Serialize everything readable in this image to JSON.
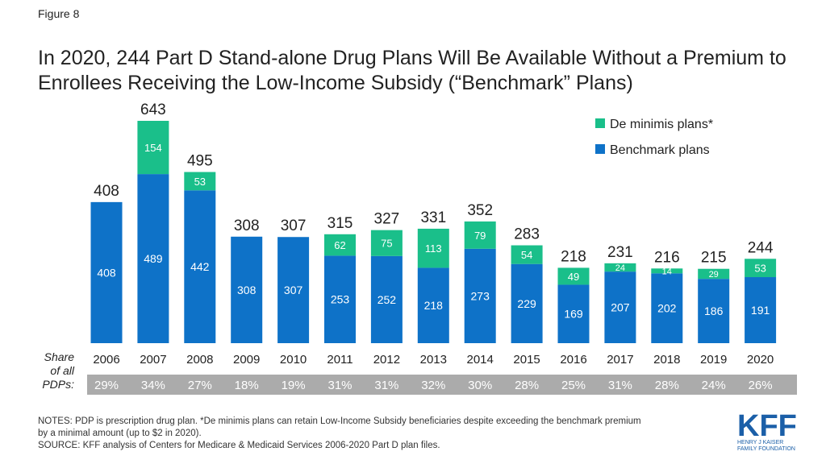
{
  "figure_label": "Figure 8",
  "title": "In 2020, 244 Part D Stand-alone Drug Plans Will Be Available Without a Premium to Enrollees Receiving the Low-Income Subsidy (“Benchmark” Plans)",
  "notes_line1": "NOTES: PDP is prescription drug plan. *De minimis plans can retain Low-Income Subsidy beneficiaries despite exceeding the benchmark premium",
  "notes_line2": "by a minimal amount (up to $2 in 2020).",
  "source": "SOURCE: KFF analysis of Centers for Medicare & Medicaid Services 2006-2020 Part D plan files.",
  "logo": {
    "big": "KFF",
    "line1": "HENRY J KAISER",
    "line2": "FAMILY FOUNDATION"
  },
  "colors": {
    "benchmark": "#0E72C8",
    "deminimis": "#1ABF8A",
    "share_bar": "#ABABAB",
    "text": "#222222"
  },
  "chart_data": {
    "type": "bar",
    "stacked": true,
    "categories": [
      "2006",
      "2007",
      "2008",
      "2009",
      "2010",
      "2011",
      "2012",
      "2013",
      "2014",
      "2015",
      "2016",
      "2017",
      "2018",
      "2019",
      "2020"
    ],
    "series": [
      {
        "name": "Benchmark plans",
        "values": [
          408,
          489,
          442,
          308,
          307,
          253,
          252,
          218,
          273,
          229,
          169,
          207,
          202,
          186,
          191
        ]
      },
      {
        "name": "De minimis plans*",
        "values": [
          null,
          154,
          53,
          null,
          null,
          62,
          75,
          113,
          79,
          54,
          49,
          24,
          14,
          29,
          53
        ]
      }
    ],
    "totals": [
      408,
      643,
      495,
      308,
      307,
      315,
      327,
      331,
      352,
      283,
      218,
      231,
      216,
      215,
      244
    ],
    "share_label": [
      "Share",
      "of all",
      "PDPs:"
    ],
    "share_of_all_pdps": [
      "29%",
      "34%",
      "27%",
      "18%",
      "19%",
      "31%",
      "31%",
      "32%",
      "30%",
      "28%",
      "25%",
      "31%",
      "28%",
      "24%",
      "26%"
    ],
    "legend_position": "top-right",
    "ylim": [
      0,
      643
    ],
    "grid": false
  }
}
